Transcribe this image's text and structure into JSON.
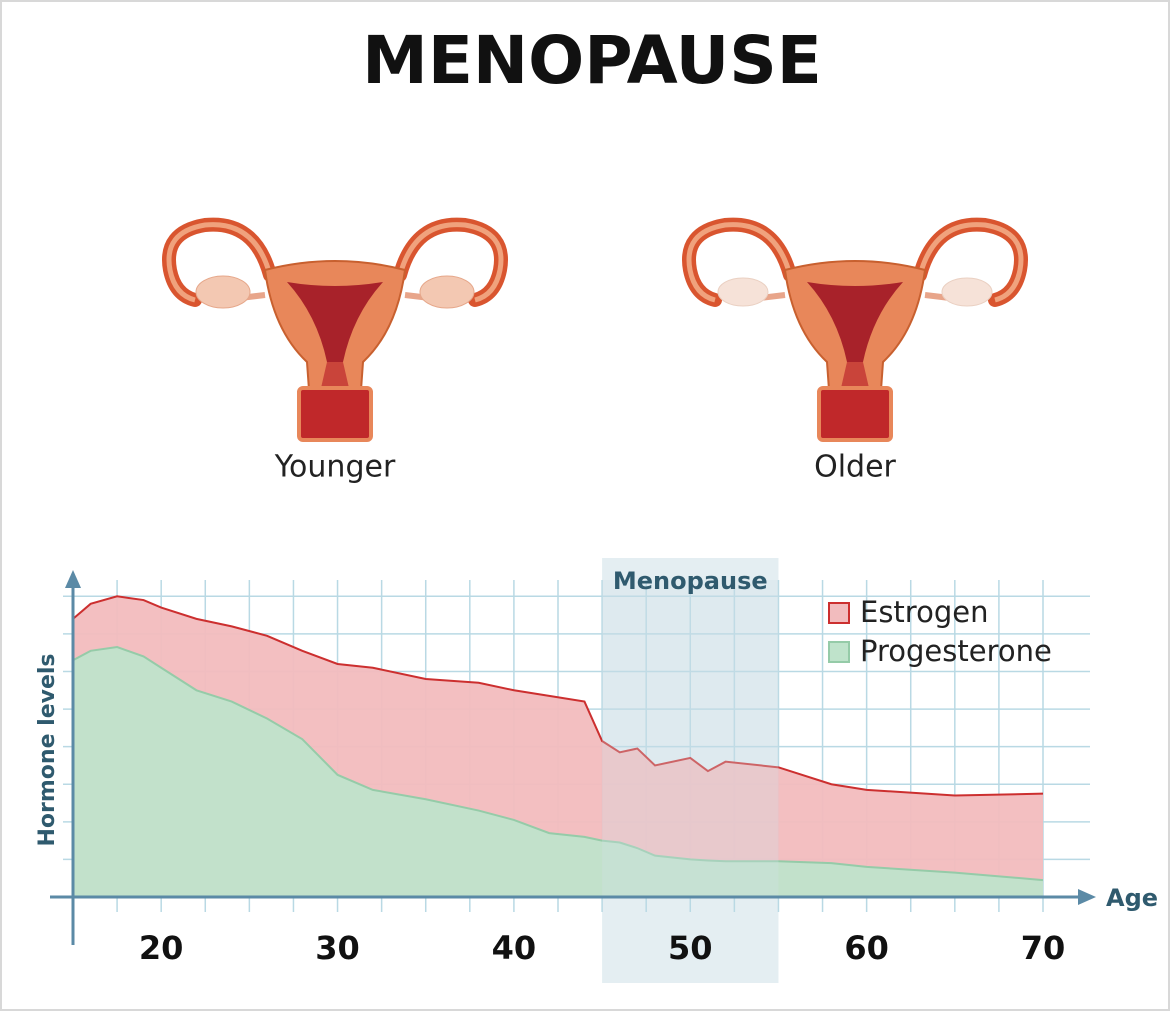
{
  "chart_data": {
    "type": "area",
    "title": "MENOPAUSE",
    "illustration_labels": [
      "Younger",
      "Older"
    ],
    "ylabel": "Hormone levels",
    "xlabel": "Age",
    "x": [
      15,
      16,
      17.5,
      19,
      20,
      22,
      24,
      26,
      28,
      30,
      32,
      35,
      38,
      40,
      42,
      44,
      45,
      46,
      47,
      48,
      50,
      51,
      52,
      55,
      58,
      60,
      65,
      70
    ],
    "series": [
      {
        "name": "Estrogen",
        "color": "#f2bcbe",
        "line_color": "#cc2f2f",
        "values": [
          7.4,
          7.8,
          8.0,
          7.9,
          7.7,
          7.4,
          7.2,
          6.95,
          6.55,
          6.2,
          6.1,
          5.8,
          5.7,
          5.5,
          5.35,
          5.2,
          4.15,
          3.85,
          3.95,
          3.5,
          3.7,
          3.35,
          3.6,
          3.45,
          3.0,
          2.85,
          2.7,
          2.75
        ]
      },
      {
        "name": "Progesterone",
        "color": "#bfe3cb",
        "line_color": "#95cba8",
        "values": [
          6.3,
          6.55,
          6.65,
          6.4,
          6.1,
          5.5,
          5.2,
          4.75,
          4.2,
          3.25,
          2.85,
          2.6,
          2.3,
          2.05,
          1.7,
          1.6,
          1.5,
          1.45,
          1.3,
          1.1,
          1.0,
          0.97,
          0.95,
          0.95,
          0.9,
          0.8,
          0.65,
          0.45
        ]
      }
    ],
    "xlim": [
      15,
      70
    ],
    "ylim": [
      0,
      8.7
    ],
    "xticks": [
      20,
      30,
      40,
      50,
      60,
      70
    ],
    "xgrid": [
      17.5,
      20,
      22.5,
      25,
      27.5,
      30,
      32.5,
      35,
      37.5,
      40,
      42.5,
      45,
      47.5,
      50,
      52.5,
      55,
      57.5,
      60,
      62.5,
      65,
      67.5,
      70
    ],
    "ygrid": [
      1,
      2,
      3,
      4,
      5,
      6,
      7,
      8
    ],
    "highlight": {
      "label": "Menopause",
      "range": [
        45,
        55
      ]
    },
    "legend": "top-right"
  }
}
